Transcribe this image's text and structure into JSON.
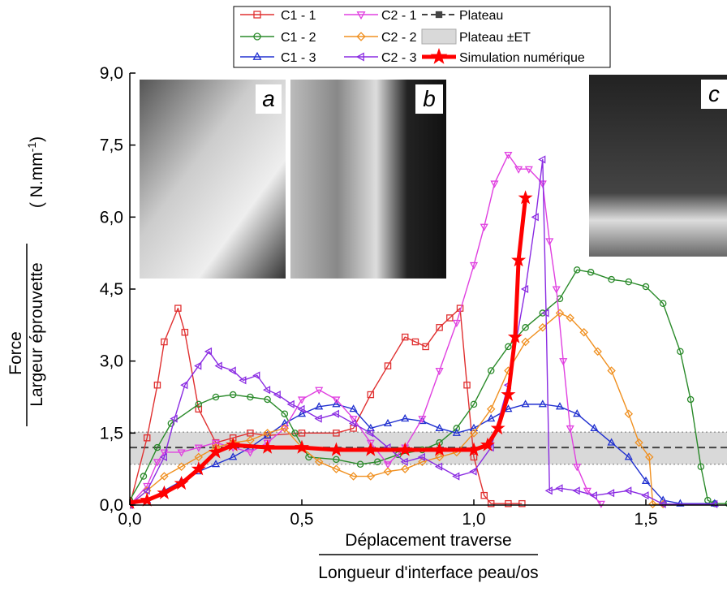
{
  "chart_data": {
    "type": "line",
    "xlabel": [
      "Déplacement traverse",
      "Longueur d'interface peau/os"
    ],
    "ylabel": [
      "Force",
      "Largeur éprouvette"
    ],
    "yunit": {
      "prefix": "( N.mm",
      "sup": "-1",
      "suffix": ")"
    },
    "insets": [
      "a",
      "b",
      "c"
    ],
    "xlim": [
      0,
      1.74
    ],
    "ylim": [
      0,
      9
    ],
    "xticks": [
      {
        "value": 0,
        "label": "0,0"
      },
      {
        "value": 0.5,
        "label": "0,5"
      },
      {
        "value": 1,
        "label": "1,0"
      },
      {
        "value": 1.5,
        "label": "1,5"
      }
    ],
    "yticks": [
      {
        "value": 0,
        "label": "0,0"
      },
      {
        "value": 1.5,
        "label": "1,5"
      },
      {
        "value": 3,
        "label": "3,0"
      },
      {
        "value": 4.5,
        "label": "4,5"
      },
      {
        "value": 6,
        "label": "6,0"
      },
      {
        "value": 7.5,
        "label": "7,5"
      },
      {
        "value": 9,
        "label": "9,0"
      }
    ],
    "plateau": {
      "name": "Plateau",
      "value": 1.2,
      "color": "#444444"
    },
    "band": {
      "name": "Plateau ±ET",
      "lower": 0.85,
      "upper": 1.52,
      "color": "#d9d9d9"
    },
    "series": [
      {
        "name": "C1 - 1",
        "color": "#e03030",
        "marker": "square",
        "x": [
          0,
          0.05,
          0.08,
          0.1,
          0.14,
          0.16,
          0.2,
          0.25,
          0.3,
          0.35,
          0.4,
          0.5,
          0.6,
          0.65,
          0.7,
          0.75,
          0.8,
          0.83,
          0.86,
          0.9,
          0.93,
          0.96,
          0.98,
          1.0,
          1.03,
          1.05,
          1.1,
          1.14
        ],
        "values": [
          0,
          1.4,
          2.5,
          3.4,
          4.1,
          3.6,
          2.0,
          1.3,
          1.4,
          1.5,
          1.45,
          1.5,
          1.5,
          1.6,
          2.3,
          2.9,
          3.5,
          3.4,
          3.3,
          3.7,
          3.9,
          4.1,
          2.5,
          1.0,
          0.2,
          0.03,
          0.03,
          0.03
        ]
      },
      {
        "name": "C1 - 2",
        "color": "#2a8a2a",
        "marker": "circle",
        "x": [
          0,
          0.04,
          0.08,
          0.12,
          0.2,
          0.25,
          0.3,
          0.35,
          0.4,
          0.45,
          0.48,
          0.52,
          0.6,
          0.67,
          0.72,
          0.78,
          0.85,
          0.9,
          0.95,
          1.0,
          1.05,
          1.1,
          1.15,
          1.2,
          1.25,
          1.3,
          1.34,
          1.4,
          1.45,
          1.5,
          1.55,
          1.6,
          1.63,
          1.66,
          1.68,
          1.7,
          1.74
        ],
        "values": [
          0.1,
          0.6,
          1.2,
          1.7,
          2.1,
          2.25,
          2.3,
          2.25,
          2.2,
          1.9,
          1.5,
          1.0,
          0.95,
          0.85,
          0.9,
          1.05,
          1.15,
          1.3,
          1.6,
          2.1,
          2.8,
          3.3,
          3.7,
          4.0,
          4.3,
          4.9,
          4.85,
          4.7,
          4.65,
          4.55,
          4.2,
          3.2,
          2.2,
          0.8,
          0.1,
          0.03,
          0.03
        ]
      },
      {
        "name": "C1 - 3",
        "color": "#2030d0",
        "marker": "triangle-up",
        "x": [
          0,
          0.05,
          0.1,
          0.15,
          0.2,
          0.25,
          0.3,
          0.35,
          0.4,
          0.45,
          0.5,
          0.55,
          0.6,
          0.65,
          0.7,
          0.75,
          0.8,
          0.85,
          0.9,
          0.95,
          1.0,
          1.05,
          1.1,
          1.15,
          1.2,
          1.25,
          1.3,
          1.35,
          1.4,
          1.45,
          1.5,
          1.55,
          1.6,
          1.7
        ],
        "values": [
          0,
          0.1,
          0.3,
          0.5,
          0.7,
          0.85,
          1.0,
          1.2,
          1.45,
          1.7,
          1.9,
          2.05,
          2.1,
          2.0,
          1.6,
          1.7,
          1.8,
          1.75,
          1.6,
          1.5,
          1.6,
          1.8,
          2.0,
          2.1,
          2.1,
          2.05,
          1.9,
          1.6,
          1.3,
          1.0,
          0.5,
          0.1,
          0.03,
          0.03
        ]
      },
      {
        "name": "C2 - 1",
        "color": "#e040e0",
        "marker": "triangle-down",
        "x": [
          0,
          0.05,
          0.08,
          0.1,
          0.15,
          0.2,
          0.25,
          0.3,
          0.35,
          0.4,
          0.45,
          0.5,
          0.55,
          0.6,
          0.65,
          0.7,
          0.75,
          0.8,
          0.85,
          0.9,
          0.95,
          1.0,
          1.03,
          1.06,
          1.1,
          1.13,
          1.16,
          1.2,
          1.22,
          1.24,
          1.26,
          1.28,
          1.3,
          1.33,
          1.37
        ],
        "values": [
          0,
          0.4,
          0.9,
          1.1,
          1.1,
          1.2,
          1.3,
          1.2,
          1.1,
          1.3,
          1.6,
          2.2,
          2.4,
          2.2,
          1.8,
          1.3,
          0.85,
          1.2,
          1.8,
          2.8,
          3.8,
          5.0,
          5.8,
          6.7,
          7.3,
          7.0,
          7.0,
          6.7,
          5.5,
          4.5,
          3.0,
          1.6,
          0.8,
          0.3,
          0.03
        ]
      },
      {
        "name": "C2 - 2",
        "color": "#f09020",
        "marker": "diamond",
        "x": [
          0,
          0.05,
          0.1,
          0.15,
          0.2,
          0.25,
          0.3,
          0.35,
          0.4,
          0.45,
          0.5,
          0.55,
          0.6,
          0.65,
          0.7,
          0.75,
          0.8,
          0.85,
          0.9,
          0.95,
          1.0,
          1.05,
          1.1,
          1.15,
          1.2,
          1.25,
          1.28,
          1.32,
          1.36,
          1.4,
          1.45,
          1.48,
          1.51,
          1.52,
          1.55
        ],
        "values": [
          0,
          0.3,
          0.6,
          0.8,
          1.0,
          1.2,
          1.3,
          1.35,
          1.5,
          1.6,
          1.2,
          0.9,
          0.75,
          0.6,
          0.6,
          0.7,
          0.75,
          0.9,
          1.0,
          1.1,
          1.5,
          2.0,
          2.8,
          3.4,
          3.7,
          4.0,
          3.9,
          3.6,
          3.2,
          2.8,
          1.9,
          1.3,
          1.0,
          0.02,
          0.02
        ]
      },
      {
        "name": "C2 - 3",
        "color": "#8a2be2",
        "marker": "triangle-left",
        "x": [
          0,
          0.05,
          0.1,
          0.13,
          0.16,
          0.2,
          0.23,
          0.26,
          0.3,
          0.33,
          0.37,
          0.4,
          0.43,
          0.47,
          0.5,
          0.55,
          0.6,
          0.65,
          0.7,
          0.75,
          0.8,
          0.85,
          0.9,
          0.95,
          1.0,
          1.05,
          1.1,
          1.15,
          1.18,
          1.2,
          1.21,
          1.22,
          1.25,
          1.3,
          1.35,
          1.4,
          1.45,
          1.5,
          1.55,
          1.7
        ],
        "values": [
          0,
          0.3,
          1.0,
          1.8,
          2.5,
          2.9,
          3.2,
          2.9,
          2.8,
          2.6,
          2.7,
          2.4,
          2.3,
          2.1,
          2.0,
          1.8,
          1.9,
          1.7,
          1.5,
          1.2,
          0.9,
          1.0,
          0.8,
          0.6,
          0.7,
          1.2,
          2.5,
          4.5,
          6.0,
          7.2,
          4.0,
          0.3,
          0.35,
          0.3,
          0.2,
          0.25,
          0.3,
          0.2,
          0.02,
          0.02
        ]
      },
      {
        "name": "Simulation numérique",
        "color": "#ff0000",
        "marker": "star",
        "x": [
          0,
          0.05,
          0.1,
          0.15,
          0.2,
          0.25,
          0.3,
          0.4,
          0.5,
          0.6,
          0.7,
          0.8,
          0.9,
          1.0,
          1.04,
          1.07,
          1.1,
          1.12,
          1.13,
          1.15
        ],
        "values": [
          0.05,
          0.1,
          0.25,
          0.45,
          0.75,
          1.1,
          1.25,
          1.2,
          1.2,
          1.15,
          1.15,
          1.15,
          1.15,
          1.15,
          1.25,
          1.6,
          2.3,
          3.5,
          5.1,
          6.4
        ]
      }
    ]
  }
}
